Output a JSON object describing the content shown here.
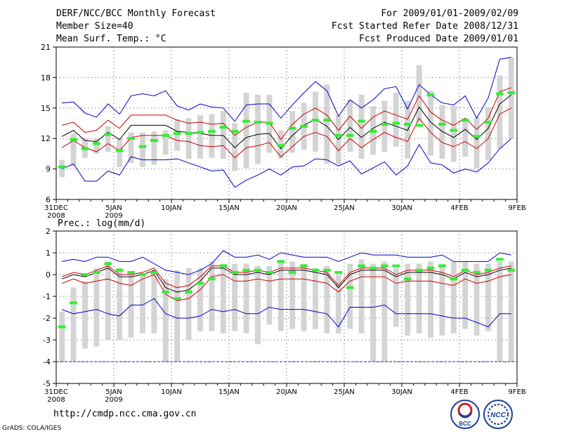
{
  "header": {
    "left": [
      "DERF/NCC/BCC Monthly Forecast",
      "Member Size=40",
      "Mean Surf. Temp.: °C"
    ],
    "right": [
      "For 2009/01/01-2009/02/09",
      "Fcst Started Refer Date 2008/12/31",
      "Fcst Produced Date 2009/01/01"
    ]
  },
  "footer": {
    "url": "http://cmdp.ncc.cma.gov.cn",
    "credit": "GrADS: COLA/IGES"
  },
  "logos": {
    "bcc_text": "BCC",
    "ncc_text": "NCC"
  },
  "colors": {
    "max": "#0000cc",
    "min": "#0000cc",
    "sd": "#cc0000",
    "mean": "#000000",
    "median": "#33ee33",
    "median_top": "#cc0000",
    "box": "#d4d4d4"
  },
  "x_tick_labels": [
    "31DEC\n2008",
    "5JAN\n2009",
    "10JAN",
    "15JAN",
    "20JAN",
    "25JAN",
    "30JAN",
    "4FEB",
    "9FEB"
  ],
  "chart_data": [
    {
      "type": "box",
      "title": "Mean Surf. Temp.: °C",
      "ylim": [
        6,
        21
      ],
      "yticks": [
        6,
        9,
        12,
        15,
        18,
        21
      ],
      "x": [
        1,
        2,
        3,
        4,
        5,
        6,
        7,
        8,
        9,
        10,
        11,
        12,
        13,
        14,
        15,
        16,
        17,
        18,
        19,
        20,
        21,
        22,
        23,
        24,
        25,
        26,
        27,
        28,
        29,
        30,
        31,
        32,
        33,
        34,
        35,
        36,
        37,
        38,
        39,
        40
      ],
      "series": [
        {
          "name": "max",
          "values": [
            15.5,
            15.6,
            14.5,
            14.1,
            15.4,
            14.4,
            16.2,
            16.4,
            16.2,
            16.7,
            15.2,
            14.8,
            15.4,
            15.1,
            15.0,
            13.7,
            15.3,
            15.4,
            15.4,
            14.0,
            15.3,
            16.5,
            17.6,
            16.7,
            14.2,
            15.8,
            15.0,
            15.8,
            16.9,
            17.1,
            14.9,
            17.3,
            16.3,
            15.5,
            15.3,
            16.2,
            14.0,
            16.0,
            19.8,
            20.0
          ]
        },
        {
          "name": "sd_upper",
          "values": [
            13.3,
            13.6,
            12.6,
            12.8,
            13.8,
            13.0,
            14.3,
            14.3,
            14.3,
            14.3,
            13.8,
            13.5,
            13.6,
            13.4,
            13.5,
            12.3,
            13.1,
            13.6,
            13.6,
            11.9,
            13.4,
            14.4,
            15.0,
            14.3,
            12.8,
            14.2,
            13.0,
            14.1,
            14.7,
            14.3,
            13.9,
            16.2,
            14.6,
            13.8,
            13.3,
            14.0,
            12.9,
            14.0,
            16.6,
            17.0
          ]
        },
        {
          "name": "mean",
          "values": [
            12.2,
            12.8,
            11.8,
            11.7,
            12.6,
            11.9,
            13.3,
            13.3,
            13.3,
            13.3,
            12.7,
            12.6,
            12.5,
            12.3,
            12.3,
            11.1,
            12.1,
            12.4,
            12.5,
            11.0,
            12.3,
            13.3,
            13.9,
            13.2,
            11.9,
            13.1,
            12.1,
            13.0,
            13.6,
            13.2,
            12.8,
            15.1,
            13.6,
            12.7,
            12.1,
            12.9,
            11.9,
            13.0,
            15.4,
            16.3
          ]
        },
        {
          "name": "sd_lower",
          "values": [
            11.1,
            11.8,
            11.1,
            10.7,
            11.5,
            10.8,
            12.1,
            12.3,
            12.3,
            12.3,
            11.8,
            11.7,
            11.3,
            11.2,
            11.3,
            10.1,
            11.1,
            11.3,
            11.6,
            10.2,
            11.2,
            12.2,
            12.6,
            12.2,
            10.8,
            12.0,
            11.1,
            11.9,
            12.6,
            12.1,
            11.7,
            14.0,
            12.6,
            11.6,
            11.2,
            11.7,
            11.0,
            12.0,
            14.4,
            15.0
          ]
        },
        {
          "name": "min",
          "values": [
            9.0,
            9.5,
            7.8,
            7.8,
            8.8,
            8.4,
            10.2,
            9.9,
            9.9,
            9.9,
            10.0,
            9.6,
            9.2,
            8.8,
            8.9,
            7.2,
            7.9,
            8.4,
            9.0,
            8.4,
            9.2,
            9.3,
            10.0,
            9.9,
            9.3,
            9.8,
            8.5,
            9.1,
            9.7,
            8.4,
            9.3,
            11.4,
            9.6,
            9.4,
            8.6,
            9.0,
            8.7,
            9.6,
            11.0,
            12.0
          ]
        },
        {
          "name": "box_high",
          "values": [
            9.9,
            12.5,
            12.0,
            12.0,
            13.2,
            12.0,
            12.6,
            12.6,
            12.7,
            12.8,
            13.9,
            14.0,
            14.3,
            14.4,
            14.7,
            13.5,
            16.5,
            16.3,
            16.3,
            12.8,
            14.7,
            15.5,
            16.6,
            17.3,
            14.3,
            15.8,
            16.3,
            15.2,
            15.7,
            16.5,
            15.7,
            19.2,
            16.7,
            15.3,
            15.2,
            14.0,
            14.1,
            15.1,
            18.2,
            20.0
          ]
        },
        {
          "name": "box_low",
          "values": [
            8.2,
            9.3,
            10.1,
            10.5,
            10.7,
            9.2,
            9.6,
            9.2,
            9.4,
            10.4,
            10.8,
            10.0,
            10.0,
            10.1,
            10.0,
            8.8,
            9.1,
            9.5,
            10.6,
            10.0,
            10.6,
            10.9,
            10.7,
            9.5,
            9.5,
            10.7,
            10.0,
            10.4,
            10.7,
            11.2,
            10.0,
            13.6,
            10.3,
            10.0,
            9.7,
            10.2,
            9.1,
            9.9,
            11.0,
            12.0
          ]
        },
        {
          "name": "median",
          "values": [
            9.2,
            11.9,
            11.0,
            11.5,
            12.4,
            10.8,
            12.0,
            11.2,
            11.8,
            12.3,
            12.5,
            12.5,
            12.6,
            12.7,
            13.1,
            12.7,
            13.7,
            13.6,
            13.5,
            11.3,
            13.0,
            13.2,
            13.8,
            13.8,
            12.3,
            12.3,
            13.7,
            12.7,
            13.4,
            13.5,
            13.4,
            13.3,
            16.3,
            13.4,
            12.8,
            13.8,
            12.2,
            13.6,
            16.4,
            16.5
          ]
        }
      ]
    },
    {
      "type": "box",
      "title": "Prec.: log(mm/d)",
      "ylim": [
        -5,
        2
      ],
      "yticks": [
        -5,
        -4,
        -3,
        -2,
        -1,
        0,
        1,
        2
      ],
      "x": [
        1,
        2,
        3,
        4,
        5,
        6,
        7,
        8,
        9,
        10,
        11,
        12,
        13,
        14,
        15,
        16,
        17,
        18,
        19,
        20,
        21,
        22,
        23,
        24,
        25,
        26,
        27,
        28,
        29,
        30,
        31,
        32,
        33,
        34,
        35,
        36,
        37,
        38,
        39,
        40
      ],
      "series": [
        {
          "name": "max",
          "values": [
            0.6,
            0.7,
            0.6,
            0.8,
            0.8,
            0.6,
            0.6,
            0.8,
            0.5,
            0.2,
            0.1,
            0.0,
            0.2,
            0.5,
            1.1,
            0.8,
            0.8,
            0.9,
            0.7,
            1.0,
            0.9,
            0.8,
            0.8,
            0.8,
            0.6,
            0.8,
            1.0,
            0.9,
            0.9,
            0.9,
            0.8,
            0.8,
            0.8,
            0.9,
            0.6,
            0.6,
            0.6,
            0.6,
            1.0,
            0.9
          ]
        },
        {
          "name": "mean",
          "values": [
            -0.2,
            0.0,
            -0.1,
            0.1,
            0.3,
            -0.1,
            -0.1,
            0.0,
            0.2,
            -0.6,
            -0.8,
            -0.7,
            -0.3,
            0.3,
            0.3,
            0.0,
            0.0,
            0.1,
            0.0,
            0.2,
            0.2,
            0.2,
            0.1,
            0.0,
            -0.6,
            0.0,
            0.2,
            0.2,
            0.2,
            -0.1,
            0.1,
            0.1,
            0.1,
            0.0,
            -0.2,
            0.1,
            -0.1,
            0.0,
            0.2,
            0.3
          ]
        },
        {
          "name": "sd_upper",
          "values": [
            -0.1,
            0.1,
            0.0,
            0.2,
            0.4,
            0.0,
            0.0,
            0.1,
            0.3,
            -0.4,
            -0.6,
            -0.5,
            -0.1,
            0.4,
            0.4,
            0.1,
            0.1,
            0.2,
            0.1,
            0.3,
            0.3,
            0.3,
            0.2,
            0.1,
            -0.5,
            0.1,
            0.3,
            0.3,
            0.3,
            0.0,
            0.2,
            0.2,
            0.2,
            0.1,
            -0.1,
            0.2,
            0.0,
            0.1,
            0.3,
            0.4
          ]
        },
        {
          "name": "sd_lower",
          "values": [
            -0.4,
            -0.2,
            -0.4,
            -0.3,
            -0.2,
            -0.4,
            -0.5,
            -0.2,
            0.0,
            -0.9,
            -1.2,
            -1.1,
            -0.7,
            -0.1,
            0.0,
            -0.3,
            -0.3,
            -0.2,
            -0.3,
            -0.2,
            -0.2,
            -0.2,
            -0.3,
            -0.4,
            -0.8,
            -0.3,
            -0.1,
            -0.1,
            -0.1,
            -0.4,
            -0.3,
            -0.3,
            -0.3,
            -0.4,
            -0.5,
            -0.2,
            -0.4,
            -0.3,
            -0.1,
            0.0
          ]
        },
        {
          "name": "min",
          "values": [
            -1.6,
            -1.8,
            -1.7,
            -1.6,
            -1.8,
            -1.9,
            -1.4,
            -1.4,
            -1.1,
            -1.8,
            -2.0,
            -2.0,
            -1.9,
            -1.6,
            -1.7,
            -1.6,
            -1.8,
            -1.8,
            -1.5,
            -1.6,
            -1.6,
            -1.6,
            -1.7,
            -1.8,
            -2.4,
            -1.5,
            -1.5,
            -1.5,
            -1.4,
            -1.8,
            -1.8,
            -1.8,
            -1.8,
            -1.9,
            -2.0,
            -2.0,
            -2.2,
            -2.4,
            -1.8,
            -1.8
          ]
        },
        {
          "name": "box_high",
          "values": [
            -1.7,
            -0.6,
            -0.3,
            0.3,
            0.6,
            0.3,
            0.1,
            0.0,
            0.2,
            -0.2,
            0.2,
            0.3,
            0.3,
            0.6,
            0.5,
            0.5,
            0.5,
            0.4,
            0.4,
            0.6,
            0.6,
            0.5,
            0.3,
            0.4,
            0.0,
            0.5,
            0.7,
            0.5,
            0.6,
            0.3,
            0.5,
            0.5,
            0.6,
            0.5,
            0.6,
            0.6,
            0.5,
            0.5,
            0.6,
            0.6
          ]
        },
        {
          "name": "box_low",
          "values": [
            -3.7,
            -3.7,
            -3.4,
            -3.3,
            -3.0,
            -3.0,
            -2.9,
            -2.7,
            -2.7,
            -3.4,
            -3.5,
            -3.0,
            -2.6,
            -2.6,
            -2.7,
            -2.6,
            -2.7,
            -3.2,
            -2.3,
            -2.6,
            -2.5,
            -2.6,
            -2.5,
            -2.7,
            -2.7,
            -2.5,
            -2.7,
            -2.7,
            -2.6,
            -2.4,
            -2.8,
            -2.7,
            -2.9,
            -2.8,
            -2.7,
            -2.5,
            -2.8,
            -2.6,
            -2.7,
            -2.7
          ]
        },
        {
          "name": "box_bottom",
          "values": [
            -4.0,
            -4.0,
            -3.4,
            -3.3,
            -3.0,
            -3.0,
            -2.9,
            -2.7,
            -2.7,
            -4.0,
            -4.0,
            -3.0,
            -2.6,
            -2.6,
            -2.7,
            -2.6,
            -2.7,
            -3.2,
            -2.3,
            -2.6,
            -2.5,
            -2.6,
            -2.5,
            -2.7,
            -2.7,
            -2.5,
            -2.7,
            -4.0,
            -4.0,
            -2.4,
            -2.8,
            -2.7,
            -2.9,
            -2.8,
            -2.7,
            -2.5,
            -2.8,
            -2.6,
            -4.0,
            -4.0
          ]
        },
        {
          "name": "median",
          "values": [
            -2.4,
            -1.3,
            0.0,
            0.1,
            0.5,
            0.2,
            0.1,
            0.0,
            0.1,
            -0.8,
            -1.1,
            -0.8,
            -0.4,
            -0.2,
            0.4,
            0.1,
            0.2,
            0.2,
            0.1,
            0.6,
            0.1,
            0.4,
            0.2,
            0.2,
            0.1,
            -0.6,
            0.4,
            0.3,
            0.4,
            0.4,
            -0.2,
            0.2,
            0.3,
            0.4,
            -0.2,
            0.2,
            0.1,
            0.2,
            0.7,
            0.2
          ]
        }
      ],
      "baseline": -4
    }
  ]
}
